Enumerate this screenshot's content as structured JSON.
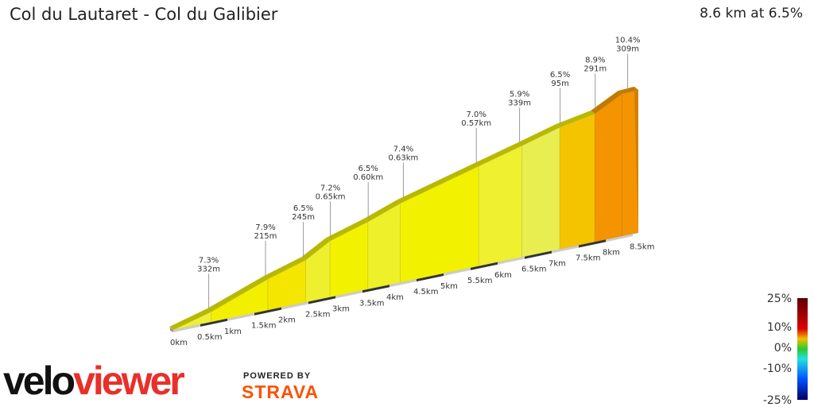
{
  "header": {
    "title": "Col du Lautaret - Col du Galibier",
    "summary": "8.6 km at 6.5%"
  },
  "chart_data": {
    "type": "area",
    "title": "Col du Lautaret - Col du Galibier",
    "x_unit": "km",
    "profile": [
      [
        0,
        0
      ],
      [
        0.7,
        40
      ],
      [
        1.75,
        122
      ],
      [
        2.45,
        166
      ],
      [
        2.9,
        221
      ],
      [
        3.6,
        265
      ],
      [
        4.2,
        311
      ],
      [
        5.65,
        393
      ],
      [
        6.45,
        438
      ],
      [
        7.15,
        479
      ],
      [
        7.8,
        504
      ],
      [
        8.3,
        559
      ],
      [
        8.6,
        562
      ]
    ],
    "segment_colors": [
      "#eef03a",
      "#f2f000",
      "#f4e600",
      "#eef02e",
      "#f2f200",
      "#eef02a",
      "#f2f200",
      "#eef030",
      "#e8ee50",
      "#f5c400",
      "#f39400",
      "#f39400"
    ],
    "x_ticks": [
      "0km",
      "0.5km",
      "1km",
      "1.5km",
      "2km",
      "2.5km",
      "3km",
      "3.5km",
      "4km",
      "4.5km",
      "5km",
      "5.5km",
      "6km",
      "6.5km",
      "7km",
      "7.5km",
      "8km",
      "8.5km"
    ],
    "annotations": [
      {
        "km": 0.7,
        "grade": "7.3%",
        "length": "332m"
      },
      {
        "km": 1.75,
        "grade": "7.9%",
        "length": "215m"
      },
      {
        "km": 2.45,
        "grade": "6.5%",
        "length": "245m"
      },
      {
        "km": 2.95,
        "grade": "7.2%",
        "length": "0.65km"
      },
      {
        "km": 3.65,
        "grade": "6.5%",
        "length": "0.60km"
      },
      {
        "km": 4.3,
        "grade": "7.4%",
        "length": "0.63km"
      },
      {
        "km": 5.65,
        "grade": "7.0%",
        "length": "0.57km"
      },
      {
        "km": 6.45,
        "grade": "5.9%",
        "length": "339m"
      },
      {
        "km": 7.2,
        "grade": "6.5%",
        "length": "95m"
      },
      {
        "km": 7.85,
        "grade": "8.9%",
        "length": "291m"
      },
      {
        "km": 8.45,
        "grade": "10.4%",
        "length": "309m"
      }
    ],
    "legend": {
      "labels": [
        "25%",
        "10%",
        "0%",
        "-10%",
        "-25%"
      ],
      "colors": [
        "#5a0000",
        "#e00000",
        "#f0c000",
        "#2ec82e",
        "#20e0e0",
        "#0050ff",
        "#000060"
      ]
    }
  },
  "branding": {
    "velo": "velo",
    "viewer": "viewer",
    "powered_by": "POWERED BY",
    "strava": "STRAVA"
  }
}
